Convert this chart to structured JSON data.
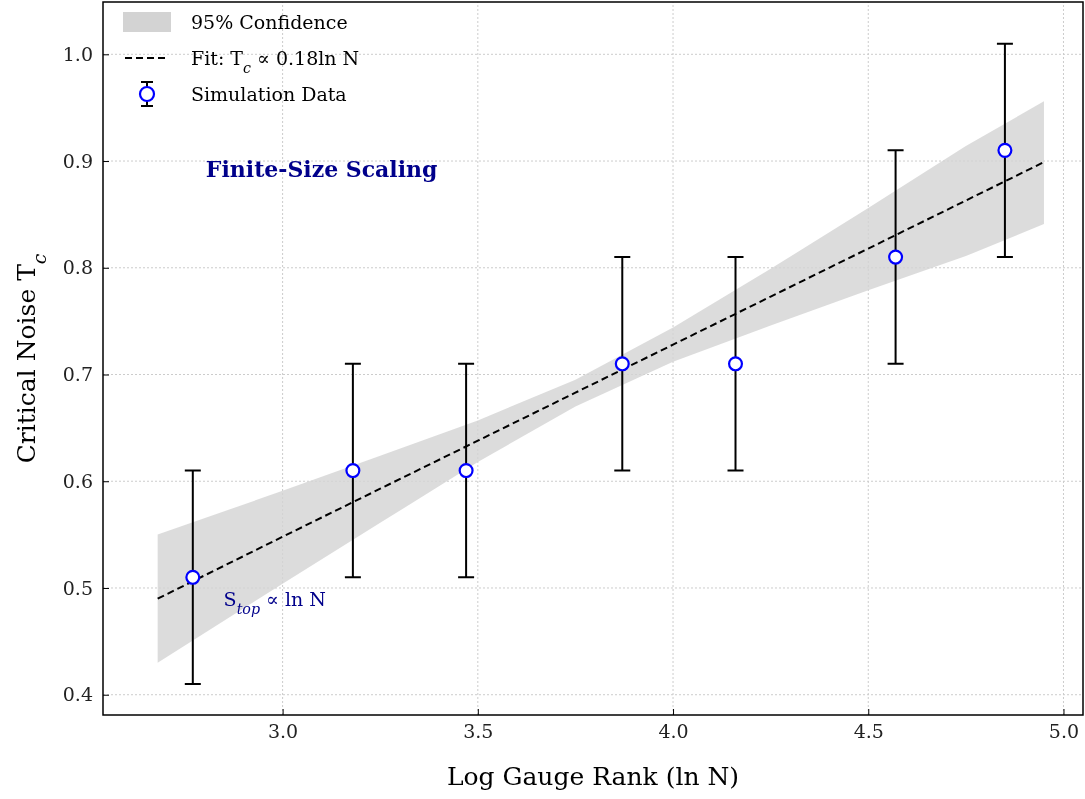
{
  "chart_data": {
    "type": "scatter",
    "xlabel": "Log Gauge Rank (ln N)",
    "ylabel": "Critical Noise T$_{c}$",
    "xlim": [
      2.54,
      5.05
    ],
    "ylim": [
      0.381,
      1.049
    ],
    "xticks": [
      {
        "value": 3,
        "label": "3.0"
      },
      3.5,
      {
        "value": 4,
        "label": "4.0"
      },
      4.5,
      {
        "value": 5,
        "label": "5.0"
      }
    ],
    "yticks": [
      0.4,
      0.5,
      0.6,
      0.7,
      0.8,
      0.9,
      {
        "value": 1,
        "label": "1.0"
      }
    ],
    "grid": true,
    "legend": "top left",
    "series": [
      {
        "type": "line",
        "name": "Fit: T$_{c}$ ∝ 0.18ln N",
        "color": "#000000",
        "line_style": "dashed",
        "x": [
          2.68,
          3.0,
          3.25,
          3.5,
          3.75,
          4.0,
          4.25,
          4.5,
          4.75,
          4.95
        ],
        "values": [
          0.49,
          0.548,
          0.593,
          0.638,
          0.683,
          0.728,
          0.773,
          0.818,
          0.863,
          0.899
        ],
        "lower": [
          0.43,
          0.504,
          0.561,
          0.618,
          0.67,
          0.712,
          0.746,
          0.779,
          0.811,
          0.841
        ],
        "upper": [
          0.55,
          0.591,
          0.624,
          0.657,
          0.695,
          0.744,
          0.799,
          0.856,
          0.914,
          0.956
        ]
      },
      {
        "name": "Simulation Data",
        "color": "#0000ff",
        "marker": "circle",
        "x": [
          2.77,
          3.18,
          3.47,
          3.87,
          4.16,
          4.57,
          4.85
        ],
        "values": [
          0.51,
          0.61,
          0.61,
          0.71,
          0.71,
          0.81,
          0.91
        ],
        "errors": [
          0.1,
          0.1,
          0.1,
          0.1,
          0.1,
          0.1,
          0.1
        ]
      }
    ],
    "annotations": [
      "Finite-Size Scaling",
      "S$_{top}$ ∝ ln N",
      "95% Confidence"
    ]
  }
}
